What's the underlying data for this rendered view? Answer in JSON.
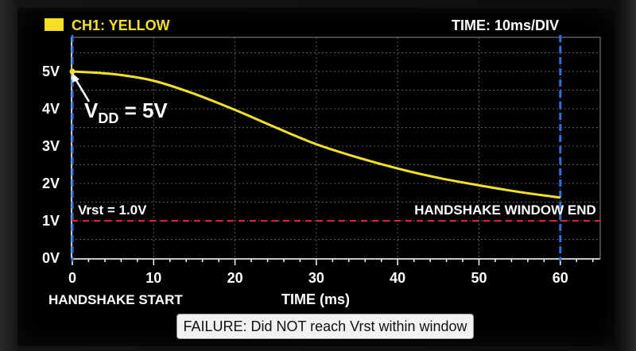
{
  "header": {
    "channel_label": "CH1: YELLOW",
    "timebase": "TIME: 10ms/DIV"
  },
  "colors": {
    "trace": "#f5e024",
    "threshold": "#e8202a",
    "marker": "#2f6fe0",
    "text": "#ffffff",
    "grid": "#6a6a6a"
  },
  "chart_data": {
    "type": "line",
    "xlabel": "TIME (ms)",
    "ylabel": "",
    "xlim": [
      0,
      65
    ],
    "ylim": [
      0,
      5
    ],
    "x_ticks": [
      0,
      10,
      20,
      30,
      40,
      50,
      60
    ],
    "y_ticks": [
      "0V",
      "1V",
      "2V",
      "3V",
      "4V",
      "5V"
    ],
    "series": [
      {
        "name": "",
        "x": [
          0,
          5,
          10,
          15,
          20,
          25,
          30,
          35,
          40,
          45,
          50,
          55,
          60
        ],
        "y": [
          5.0,
          4.93,
          4.75,
          4.4,
          3.97,
          3.5,
          3.05,
          2.7,
          2.4,
          2.15,
          1.95,
          1.77,
          1.62
        ]
      }
    ],
    "threshold": {
      "label": "Vrst = 1.0V",
      "value": 1.0
    },
    "markers": [
      {
        "x": 0,
        "label": "HANDSHAKE START"
      },
      {
        "x": 60,
        "label": "HANDSHAKE WINDOW END"
      }
    ],
    "annotation": {
      "main": "V",
      "sub": "DD",
      "rest": " = 5V"
    },
    "grid": true,
    "status": "FAILURE: Did NOT reach Vrst within window"
  }
}
